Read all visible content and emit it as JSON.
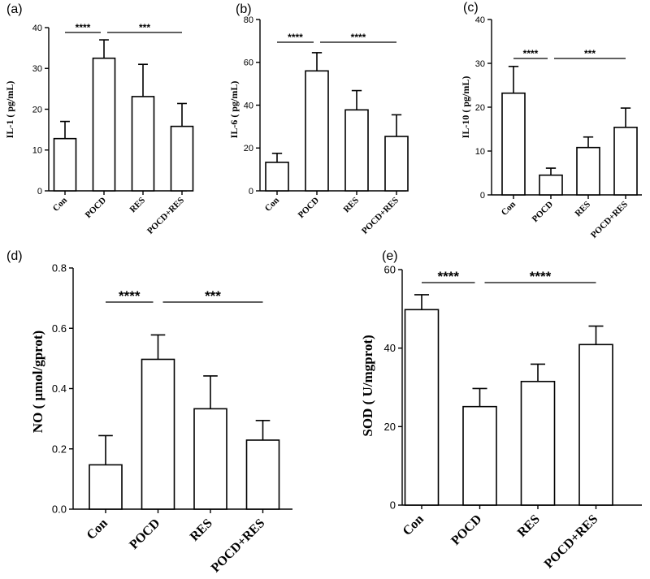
{
  "chart_data": [
    {
      "panel": "(a)",
      "type": "bar",
      "categories": [
        "Con",
        "POCD",
        "RES",
        "POCD+RES"
      ],
      "values": [
        12.8,
        32.5,
        23.1,
        15.8
      ],
      "errors": [
        4.2,
        4.5,
        7.9,
        5.6
      ],
      "ylabel": "IL-1 ( pg/mL)",
      "ylim": [
        0,
        40
      ],
      "yticks": [
        0,
        10,
        20,
        30,
        40
      ],
      "significance": [
        {
          "from": 0,
          "to": 1,
          "label": "****"
        },
        {
          "from": 1,
          "to": 3,
          "label": "***"
        }
      ]
    },
    {
      "panel": "(b)",
      "type": "bar",
      "categories": [
        "Con",
        "POCD",
        "RES",
        "POCD+RES"
      ],
      "values": [
        13.3,
        56.0,
        37.8,
        25.4
      ],
      "errors": [
        4.2,
        8.5,
        9.0,
        10.1
      ],
      "ylabel": "IL-6 ( pg/mL)",
      "ylim": [
        0,
        80
      ],
      "yticks": [
        0,
        20,
        40,
        60,
        80
      ],
      "significance": [
        {
          "from": 0,
          "to": 1,
          "label": "****"
        },
        {
          "from": 1,
          "to": 3,
          "label": "****"
        }
      ]
    },
    {
      "panel": "(c)",
      "type": "bar",
      "categories": [
        "Con",
        "POCD",
        "RES",
        "POCD+RES"
      ],
      "values": [
        23.2,
        4.5,
        10.8,
        15.4
      ],
      "errors": [
        6.1,
        1.6,
        2.4,
        4.4
      ],
      "ylabel": "IL-10 ( pg/mL)",
      "ylim": [
        0,
        40
      ],
      "yticks": [
        0,
        10,
        20,
        30,
        40
      ],
      "significance": [
        {
          "from": 0,
          "to": 1,
          "label": "****"
        },
        {
          "from": 1,
          "to": 3,
          "label": "***"
        }
      ]
    },
    {
      "panel": "(d)",
      "type": "bar",
      "categories": [
        "Con",
        "POCD",
        "RES",
        "POCD+RES"
      ],
      "values": [
        0.147,
        0.497,
        0.333,
        0.229
      ],
      "errors": [
        0.097,
        0.081,
        0.109,
        0.065
      ],
      "ylabel": "NO ( μmol/gprot)",
      "ylim": [
        0,
        0.8
      ],
      "yticks": [
        "0.0",
        "0.2",
        "0.4",
        "0.6",
        "0.8"
      ],
      "significance": [
        {
          "from": 0,
          "to": 1,
          "label": "****"
        },
        {
          "from": 1,
          "to": 3,
          "label": "***"
        }
      ]
    },
    {
      "panel": "(e)",
      "type": "bar",
      "categories": [
        "Con",
        "POCD",
        "RES",
        "POCD+RES"
      ],
      "values": [
        49.8,
        25.1,
        31.5,
        40.9
      ],
      "errors": [
        3.8,
        4.6,
        4.4,
        4.7
      ],
      "ylabel": "SOD ( U/mgprot)",
      "ylim": [
        0,
        60
      ],
      "yticks": [
        0,
        20,
        40,
        60
      ],
      "significance": [
        {
          "from": 0,
          "to": 1,
          "label": "****"
        },
        {
          "from": 1,
          "to": 3,
          "label": "****"
        }
      ]
    }
  ]
}
